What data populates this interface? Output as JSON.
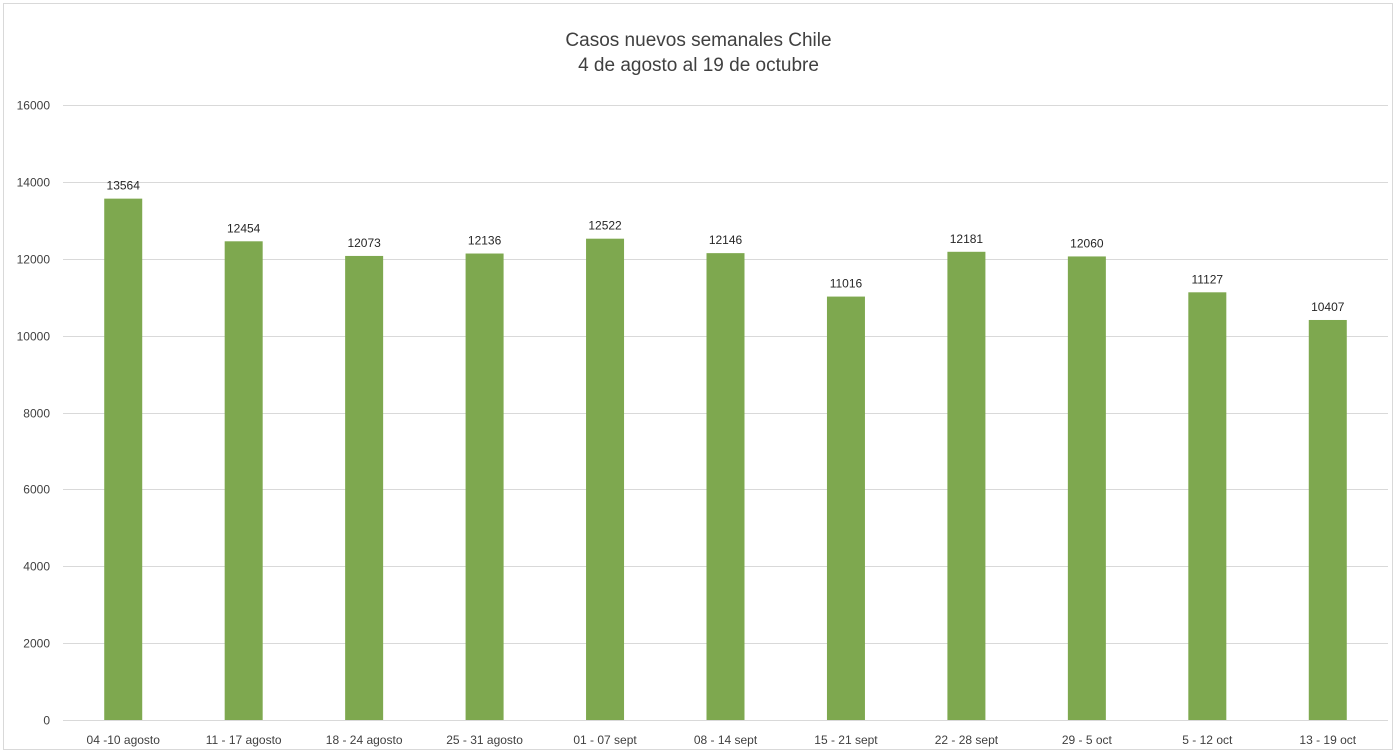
{
  "chart_data": {
    "type": "bar",
    "title": "Casos nuevos semanales Chile",
    "subtitle": "4 de agosto al 19 de octubre",
    "xlabel": "",
    "ylabel": "",
    "ylim": [
      0,
      16000
    ],
    "yticks": [
      0,
      2000,
      4000,
      6000,
      8000,
      10000,
      12000,
      14000,
      16000
    ],
    "grid": true,
    "legend": "none",
    "bar_color": "#7ea84f",
    "gridline_color": "#d9d9d9",
    "categories": [
      "04 -10 agosto",
      "11 - 17 agosto",
      "18 - 24 agosto",
      "25 - 31 agosto",
      "01 - 07 sept",
      "08 - 14 sept",
      "15 - 21 sept",
      "22 - 28 sept",
      "29 - 5 oct",
      "5 - 12 oct",
      "13 - 19 oct"
    ],
    "values": [
      13564,
      12454,
      12073,
      12136,
      12522,
      12146,
      11016,
      12181,
      12060,
      11127,
      10407
    ]
  }
}
